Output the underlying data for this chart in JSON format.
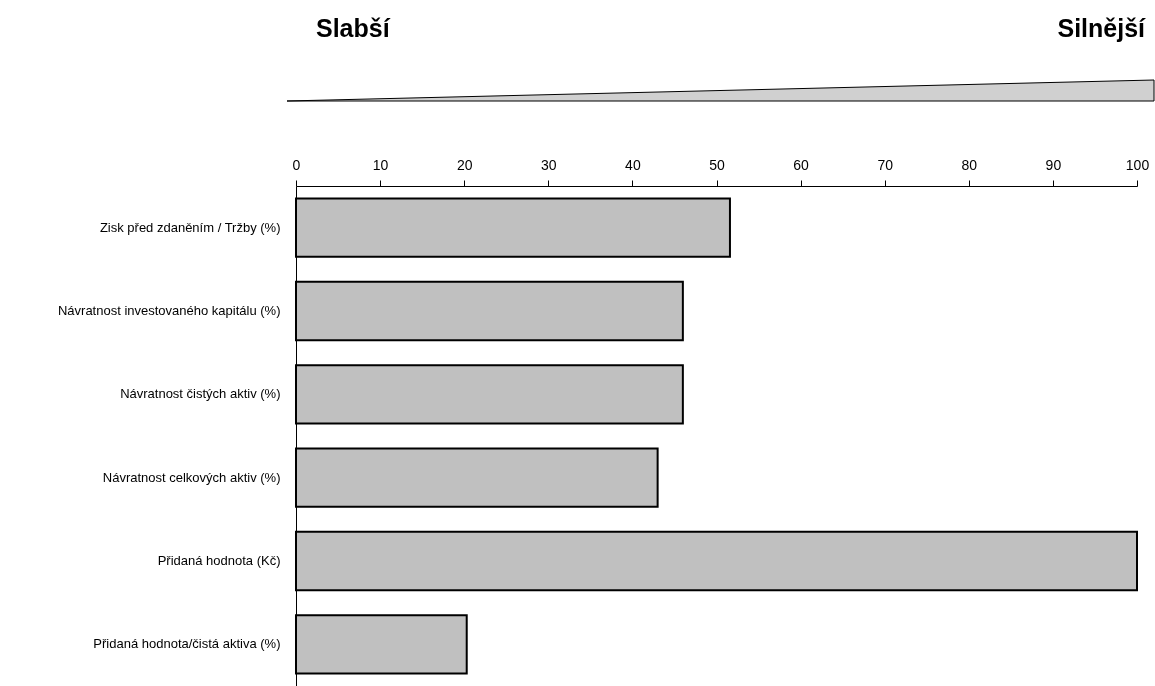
{
  "chart_data": {
    "type": "bar",
    "orientation": "horizontal",
    "categories": [
      "Zisk před zdaněním / Tržby (%)",
      "Návratnost investovaného kapitálu (%)",
      "Návratnost čistých aktiv (%)",
      "Návratnost celkových aktiv (%)",
      "Přidaná hodnota (Kč)",
      "Přidaná hodnota/čistá aktiva (%)"
    ],
    "values": [
      51.6,
      46,
      46,
      43,
      100,
      20.3
    ],
    "color": "#c0c0c0",
    "xlim": [
      0,
      100
    ],
    "xticks": [
      0,
      10,
      20,
      30,
      40,
      50,
      60,
      70,
      80,
      90,
      100
    ],
    "grid": false,
    "annotations": [
      "Slabší",
      "Silnější"
    ]
  }
}
